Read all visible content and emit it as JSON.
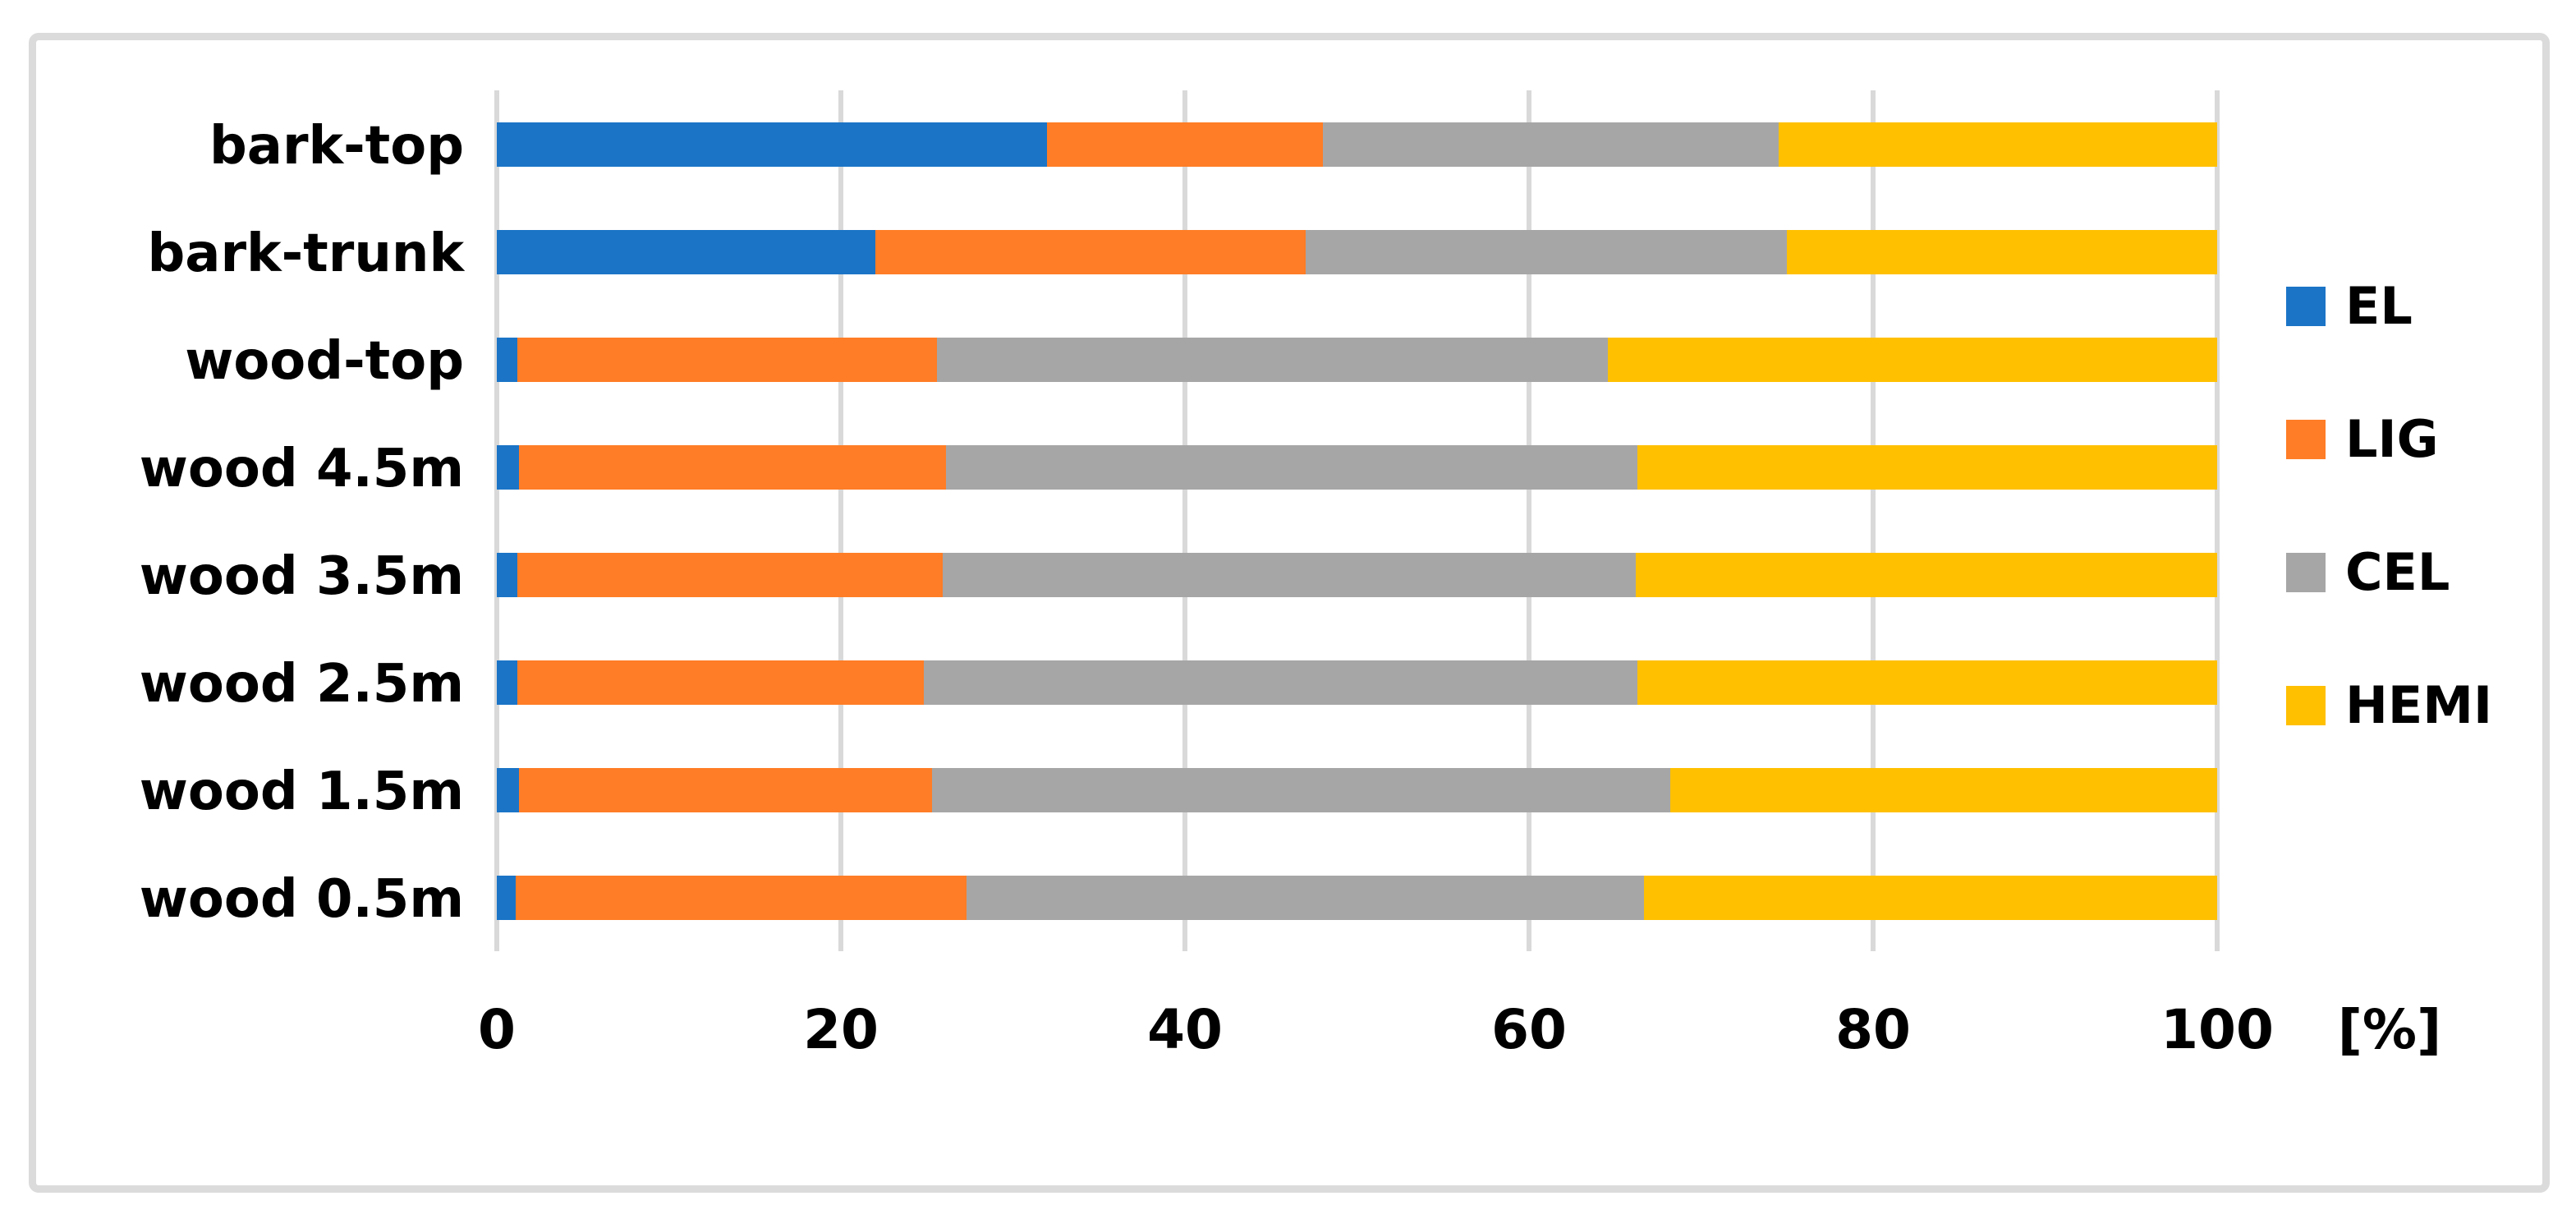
{
  "chart_data": {
    "type": "bar",
    "orientation": "horizontal",
    "stacked": true,
    "title": "",
    "xlabel": "[%]",
    "ylabel": "",
    "xlim": [
      0,
      100
    ],
    "x_ticks": [
      0,
      20,
      40,
      60,
      80,
      100
    ],
    "grid": "vertical",
    "legend_position": "right",
    "categories": [
      "bark-top",
      "bark-trunk",
      "wood-top",
      "wood 4.5m",
      "wood 3.5m",
      "wood 2.5m",
      "wood 1.5m",
      "wood 0.5m"
    ],
    "series": [
      {
        "name": "EL",
        "color": "#1B74C6",
        "values": [
          32.0,
          22.0,
          1.2,
          1.3,
          1.2,
          1.2,
          1.3,
          1.1
        ]
      },
      {
        "name": "LIG",
        "color": "#FF7D26",
        "values": [
          16.0,
          25.0,
          24.4,
          24.8,
          24.7,
          23.6,
          24.0,
          26.2
        ]
      },
      {
        "name": "CEL",
        "color": "#A6A6A6",
        "values": [
          26.5,
          28.0,
          39.0,
          40.2,
          40.3,
          41.5,
          42.9,
          39.4
        ]
      },
      {
        "name": "HEMI",
        "color": "#FFC000",
        "values": [
          25.5,
          25.0,
          35.4,
          33.7,
          33.8,
          33.7,
          31.8,
          33.3
        ]
      }
    ]
  },
  "style": {
    "gridline_color": "#D9D9D9",
    "frame_color": "#DBDBDB",
    "text_color": "#000000",
    "background": "#ffffff"
  }
}
